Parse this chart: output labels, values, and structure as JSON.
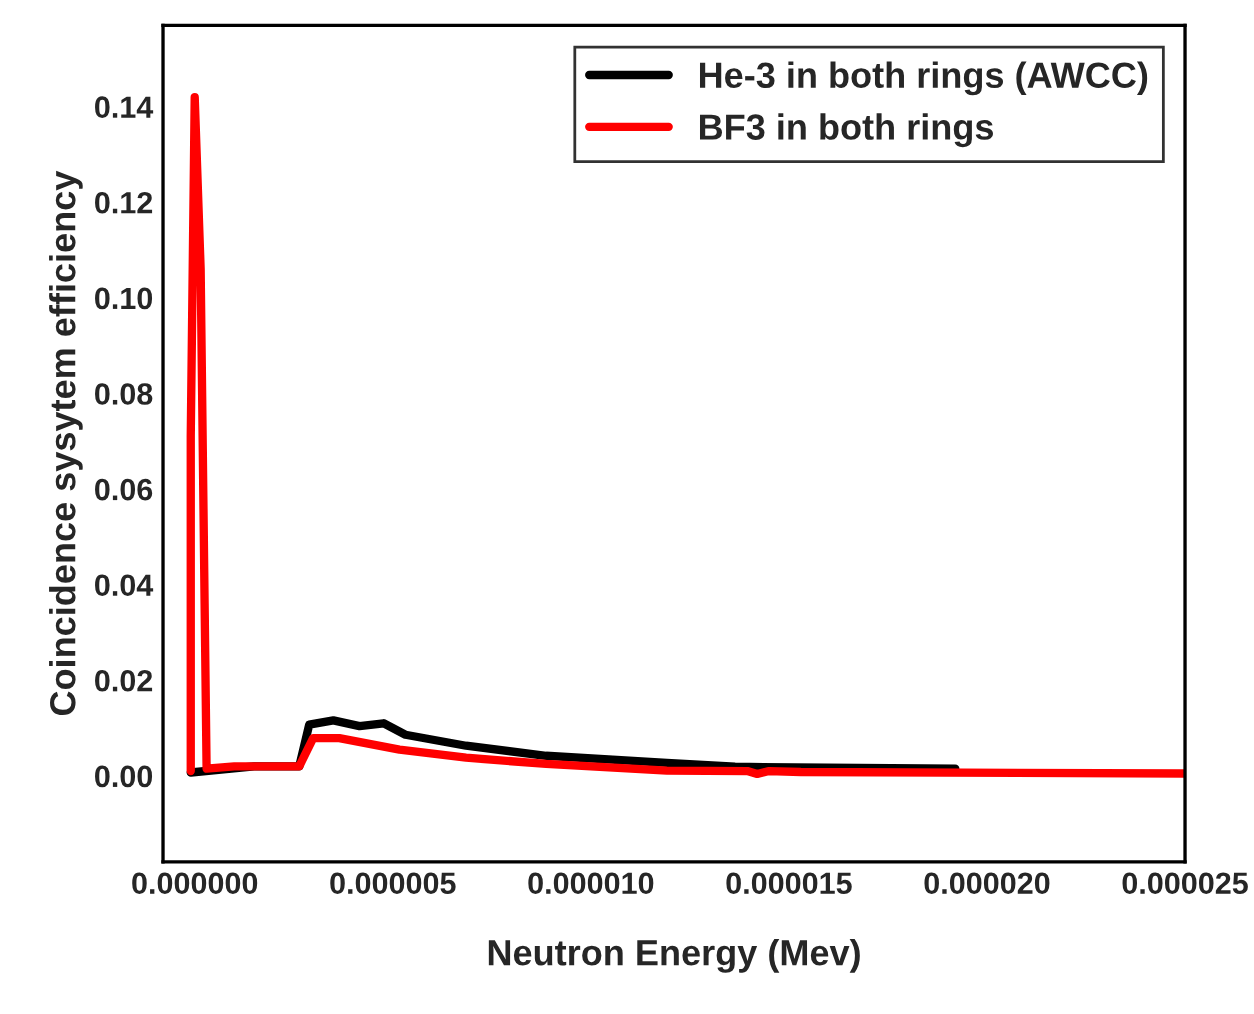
{
  "chart_data": {
    "type": "line",
    "xlabel": "Neutron Energy (Mev)",
    "ylabel": "Coincidence sysytem efficiency",
    "xlim": [
      -8e-07,
      2.5e-05
    ],
    "ylim": [
      -0.018,
      0.157
    ],
    "xticks": [
      {
        "value": 0,
        "label": "0.000000"
      },
      {
        "value": 5e-06,
        "label": "0.000005"
      },
      {
        "value": 1e-05,
        "label": "0.000010"
      },
      {
        "value": 1.5e-05,
        "label": "0.000015"
      },
      {
        "value": 2e-05,
        "label": "0.000020"
      },
      {
        "value": 2.5e-05,
        "label": "0.000025"
      }
    ],
    "yticks": [
      {
        "value": 0,
        "label": "0.00"
      },
      {
        "value": 0.02,
        "label": "0.02"
      },
      {
        "value": 0.04,
        "label": "0.04"
      },
      {
        "value": 0.06,
        "label": "0.06"
      },
      {
        "value": 0.08,
        "label": "0.08"
      },
      {
        "value": 0.1,
        "label": "0.10"
      },
      {
        "value": 0.12,
        "label": "0.12"
      },
      {
        "value": 0.14,
        "label": "0.14"
      }
    ],
    "grid": false,
    "legend": "top right",
    "marker": "none",
    "line_style": "solid",
    "series": [
      {
        "name": "He-3 in both rings (AWCC)",
        "color": "#000000",
        "x": [
          -1e-07,
          1.5e-06,
          2.4e-06,
          2.64e-06,
          2.89e-06,
          3.5e-06,
          4.16e-06,
          4.77e-06,
          5.32e-06,
          6.85e-06,
          8.87e-06,
          1.192e-05,
          1.364e-05,
          1.597e-05,
          1.92e-05
        ],
        "values": [
          0.0007,
          0.002,
          0.002,
          0.002,
          0.0107,
          0.0116,
          0.0104,
          0.011,
          0.0086,
          0.0063,
          0.0042,
          0.0027,
          0.0019,
          0.0017,
          0.0015
        ]
      },
      {
        "name": "BF3 in both rings",
        "color": "#ff0000",
        "x": [
          -1e-07,
          -1e-07,
          0,
          1.5e-07,
          2.5e-07,
          3e-07,
          1e-06,
          2.64e-06,
          2.99e-06,
          3.65e-06,
          5.17e-06,
          6.85e-06,
          8.87e-06,
          1.192e-05,
          1.395e-05,
          1.42e-05,
          1.45e-05,
          1.53e-05,
          2.5e-05
        ],
        "values": [
          0.001,
          0.071,
          0.142,
          0.106,
          0.036,
          0.0015,
          0.002,
          0.002,
          0.0079,
          0.0079,
          0.0055,
          0.0038,
          0.0025,
          0.0011,
          0.001,
          0.0004,
          0.001,
          0.0008,
          0.0005
        ]
      }
    ]
  }
}
